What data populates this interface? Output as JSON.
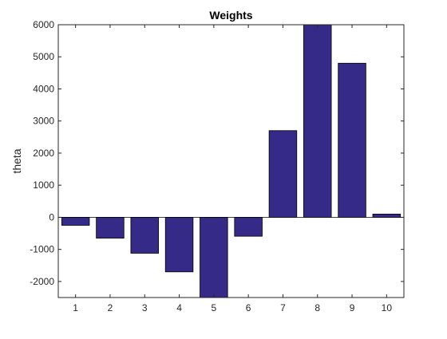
{
  "chart_data": {
    "type": "bar",
    "title": "Weights",
    "xlabel": "",
    "ylabel": "theta",
    "categories": [
      "1",
      "2",
      "3",
      "4",
      "5",
      "6",
      "7",
      "8",
      "9",
      "10"
    ],
    "values": [
      -250,
      -650,
      -1120,
      -1700,
      -2700,
      -590,
      2700,
      6100,
      4800,
      100
    ],
    "ylim": [
      -2500,
      6000
    ],
    "yticks": [
      -2000,
      -1000,
      0,
      1000,
      2000,
      3000,
      4000,
      5000,
      6000
    ],
    "grid": false,
    "legend": "none",
    "bar_color": "#352a87",
    "bar_edge_color": "#000000"
  }
}
